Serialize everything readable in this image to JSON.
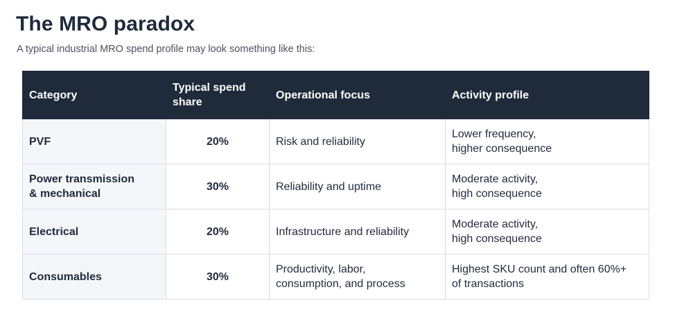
{
  "page": {
    "title": "The MRO paradox",
    "subtitle": "A typical industrial MRO spend profile may look something like this:"
  },
  "table": {
    "headers": {
      "category": "Category",
      "share_line1": "Typical spend",
      "share_line2": "share",
      "focus": "Operational focus",
      "activity": "Activity profile"
    },
    "rows": [
      {
        "category": [
          "PVF"
        ],
        "share": "20%",
        "focus": [
          "Risk and reliability"
        ],
        "activity": [
          "Lower frequency,",
          "higher consequence"
        ]
      },
      {
        "category": [
          "Power transmission",
          "& mechanical"
        ],
        "share": "30%",
        "focus": [
          "Reliability and uptime"
        ],
        "activity": [
          "Moderate activity,",
          "high consequence"
        ]
      },
      {
        "category": [
          "Electrical"
        ],
        "share": "20%",
        "focus": [
          "Infrastructure and reliability"
        ],
        "activity": [
          "Moderate activity,",
          "high consequence"
        ]
      },
      {
        "category": [
          "Consumables"
        ],
        "share": "30%",
        "focus": [
          "Productivity, labor,",
          "consumption, and process"
        ],
        "activity": [
          "Highest SKU count and often 60%+",
          "of transactions"
        ]
      }
    ]
  }
}
